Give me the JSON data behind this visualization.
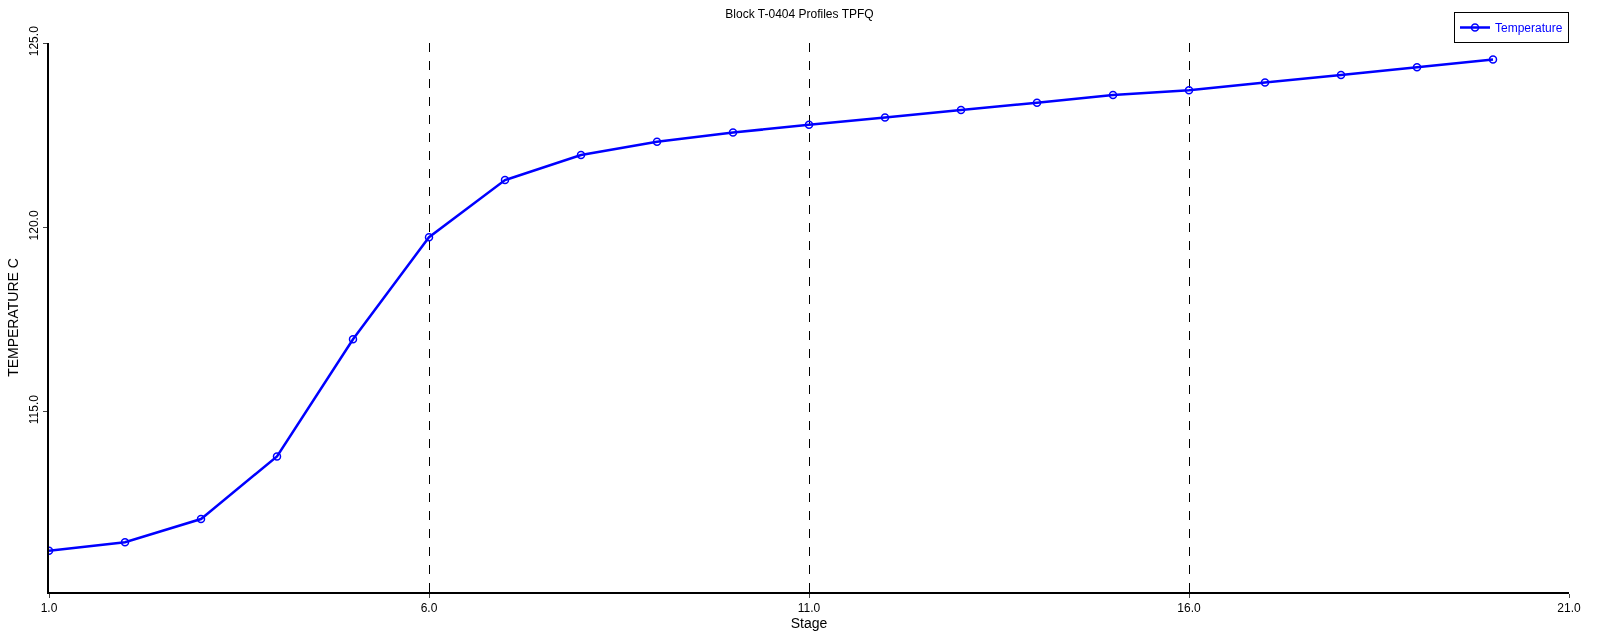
{
  "chart_data": {
    "type": "line",
    "title": "Block T-0404 Profiles TPFQ",
    "xlabel": "Stage",
    "ylabel": "TEMPERATURE C",
    "x": [
      1,
      2,
      3,
      4,
      5,
      6,
      7,
      8,
      9,
      10,
      11,
      12,
      13,
      14,
      15,
      16,
      17,
      18,
      19,
      20
    ],
    "series": [
      {
        "name": "Temperature",
        "color": "#0000ff",
        "values": [
          111.22,
          111.45,
          112.08,
          113.78,
          116.96,
          119.73,
          121.28,
          121.96,
          122.32,
          122.57,
          122.78,
          122.98,
          123.18,
          123.38,
          123.59,
          123.72,
          123.93,
          124.13,
          124.34,
          124.55
        ]
      }
    ],
    "xlim": [
      1,
      21
    ],
    "ylim": [
      110.1,
      125
    ],
    "xticks": [
      {
        "value": 1,
        "label": "1.0"
      },
      {
        "value": 6,
        "label": "6.0"
      },
      {
        "value": 11,
        "label": "11.0"
      },
      {
        "value": 16,
        "label": "16.0"
      },
      {
        "value": 21,
        "label": "21.0"
      }
    ],
    "yticks": [
      {
        "value": 115,
        "label": "115.0"
      },
      {
        "value": 120,
        "label": "120.0"
      },
      {
        "value": 125,
        "label": "125.0"
      }
    ],
    "grid": "x",
    "legend": "top right",
    "marker": "circle",
    "line_style": "solid"
  }
}
